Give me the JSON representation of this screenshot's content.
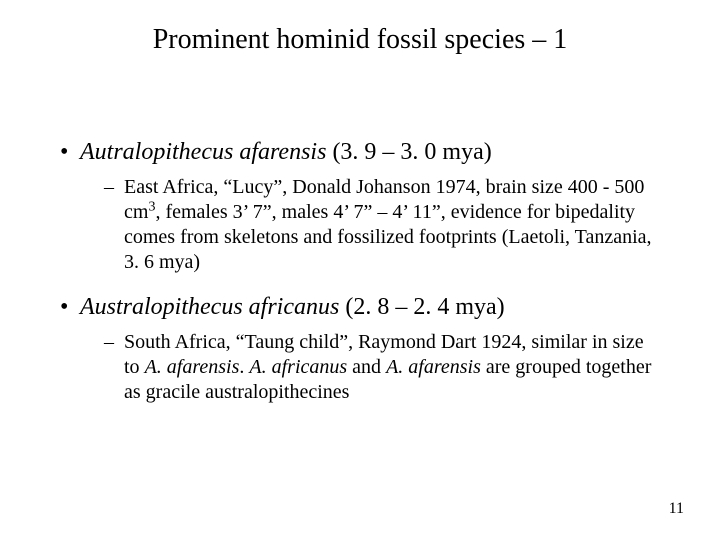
{
  "title": "Prominent hominid fossil species – 1",
  "page_number": "11",
  "colors": {
    "background": "#ffffff",
    "text": "#000000"
  },
  "typography": {
    "family": "Times New Roman",
    "title_fontsize_pt": 28,
    "level1_fontsize_pt": 24,
    "level2_fontsize_pt": 20,
    "pagenum_fontsize_pt": 16
  },
  "bullets": [
    {
      "level": 1,
      "species_name": "Autralopithecus afarensis",
      "date_range": " (3. 9 – 3. 0 mya)"
    },
    {
      "level": 2,
      "text_pre": "East Africa, “Lucy”, Donald Johanson 1974, brain size 400 - 500 cm",
      "sup": "3",
      "text_post": ", females 3’ 7”, males 4’ 7” – 4’ 11”, evidence for bipedality comes from skeletons and fossilized footprints (Laetoli, Tanzania, 3. 6 mya)"
    },
    {
      "level": 1,
      "species_name": "Australopithecus africanus",
      "date_range": " (2. 8 – 2. 4 mya)"
    },
    {
      "level": 2,
      "text_pre": "South Africa, “Taung child”, Raymond Dart 1924, similar in size to ",
      "italic1": "A. afarensis",
      "mid": ".  ",
      "italic2": "A. africanus",
      "mid2": " and ",
      "italic3": "A. afarensis",
      "text_post": " are grouped together as gracile australopithecines"
    }
  ]
}
